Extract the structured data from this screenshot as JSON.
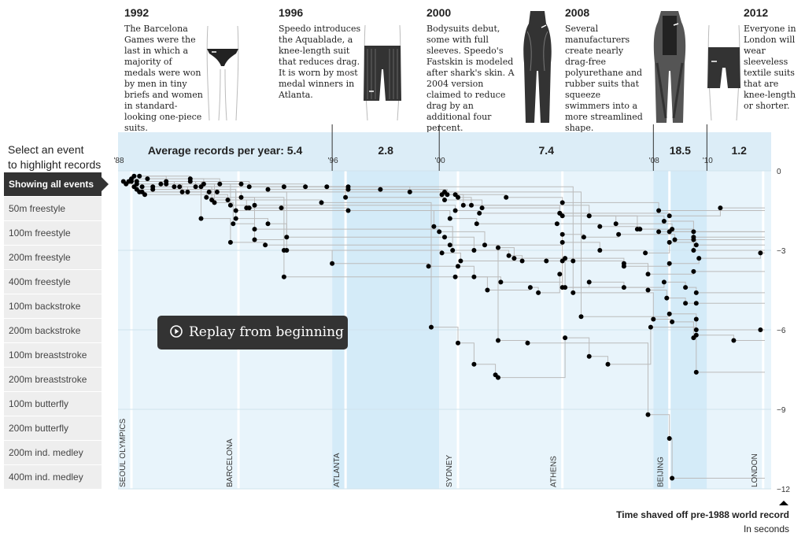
{
  "eras": [
    {
      "year": "1992",
      "text": "The Barcelona Games were the last in which a majority of medals were won by men in tiny briefs and women in standard-looking one-piece suits.",
      "suit_icon": "briefs-icon"
    },
    {
      "year": "1996",
      "text": "Speedo introduces the Aquablade, a knee-length suit that reduces drag. It is worn by most medal winners in Atlanta.",
      "suit_icon": "knee-suit-icon"
    },
    {
      "year": "2000",
      "text": "Bodysuits debut, some with full sleeves. Speedo's Fastskin is modeled after shark's skin. A 2004 version claimed to reduce drag by an additional four percent.",
      "suit_icon": "bodysuit-icon"
    },
    {
      "year": "2008",
      "text": "Several manufacturers create nearly drag-free polyurethane and rubber suits that squeeze swimmers into a more streamlined shape.",
      "suit_icon": "polyurethane-suit-icon"
    },
    {
      "year": "2012",
      "text": "Everyone in London will wear sleeveless textile suits that are knee-length or shorter.",
      "suit_icon": "sleeveless-suit-icon"
    }
  ],
  "sidebar": {
    "label_line1": "Select an event",
    "label_line2": "to highlight records",
    "items": [
      "Showing all events",
      "50m freestyle",
      "100m freestyle",
      "200m freestyle",
      "400m freestyle",
      "100m backstroke",
      "200m backstroke",
      "100m breaststroke",
      "200m breaststroke",
      "100m butterfly",
      "200m butterfly",
      "200m ind. medley",
      "400m ind. medley"
    ],
    "active_index": 0
  },
  "replay": {
    "label": "Replay from beginning",
    "icon": "play-circle-icon"
  },
  "footer": {
    "title": "Time shaved off pre-1988 world record",
    "unit": "In seconds",
    "icon": "triangle-up-icon"
  },
  "chart_data": {
    "type": "scatter",
    "title": "",
    "xlabel": "",
    "ylabel": "Time shaved off pre-1988 world record",
    "ylim": [
      -12,
      0
    ],
    "xlim": [
      1988,
      2012.4
    ],
    "y_ticks": [
      0,
      -3,
      -6,
      -9,
      -12
    ],
    "y_tick_labels": [
      "0",
      "−3",
      "−6",
      "−9",
      "−12"
    ],
    "x_ticks": [
      {
        "x": 1988,
        "label": "'88"
      },
      {
        "x": 1996,
        "label": "'96"
      },
      {
        "x": 2000,
        "label": "'00"
      },
      {
        "x": 2008,
        "label": "'08"
      },
      {
        "x": 2010,
        "label": "'10"
      }
    ],
    "grid": true,
    "legend": "none",
    "average_label_prefix": "Average records per year: ",
    "periods": [
      {
        "start": 1988,
        "end": 1996,
        "average": "5.4",
        "shade": "light"
      },
      {
        "start": 1996,
        "end": 2000,
        "average": "2.8",
        "shade": "dark"
      },
      {
        "start": 2000,
        "end": 2008,
        "average": "7.4",
        "shade": "light"
      },
      {
        "start": 2008,
        "end": 2010,
        "average": "18.5",
        "shade": "dark"
      },
      {
        "start": 2010,
        "end": 2012.4,
        "average": "1.2",
        "shade": "light"
      }
    ],
    "olympics": [
      {
        "x": 1988.5,
        "label": "SEOUL OLYMPICS"
      },
      {
        "x": 1992.5,
        "label": "BARCELONA"
      },
      {
        "x": 1996.5,
        "label": "ATLANTA"
      },
      {
        "x": 2000.7,
        "label": "SYDNEY"
      },
      {
        "x": 2004.6,
        "label": "ATHENS"
      },
      {
        "x": 2008.6,
        "label": "BEIJING"
      },
      {
        "x": 2012.1,
        "label": "LONDON"
      }
    ],
    "colors": {
      "light": "#e8f4fb",
      "dark": "#d4ebf8",
      "header": "#dcedf7",
      "dot": "#000000",
      "line": "#bbbbbb",
      "games": "#ffffff"
    },
    "series": [
      {
        "points": [
          [
            1988.2,
            -0.4
          ],
          [
            1988.6,
            -0.2
          ],
          [
            1990.7,
            -0.3
          ],
          [
            1991.8,
            -0.5
          ],
          [
            1994.2,
            -0.6
          ],
          [
            1996.6,
            -0.6
          ],
          [
            1998.9,
            -0.8
          ],
          [
            2000.1,
            -0.9
          ],
          [
            2000.6,
            -0.9
          ],
          [
            2002.5,
            -1.0
          ],
          [
            2004.6,
            -1.2
          ],
          [
            2008.2,
            -1.5
          ]
        ]
      },
      {
        "points": [
          [
            1988.3,
            -0.5
          ],
          [
            1989.3,
            -0.6
          ],
          [
            1990.6,
            -0.8
          ],
          [
            1992.6,
            -1.0
          ],
          [
            1993.1,
            -1.3
          ],
          [
            2000.6,
            -1.5
          ],
          [
            2001.5,
            -1.6
          ],
          [
            2004.6,
            -1.7
          ],
          [
            2008.4,
            -1.9
          ],
          [
            2009.5,
            -2.3
          ]
        ]
      },
      {
        "points": [
          [
            1988.8,
            -0.2
          ],
          [
            1989.8,
            -0.4
          ],
          [
            1991.1,
            -0.6
          ],
          [
            1995.8,
            -0.6
          ],
          [
            1996.5,
            -1.0
          ],
          [
            2000.2,
            -1.1
          ],
          [
            2001.6,
            -1.4
          ],
          [
            2004.5,
            -1.6
          ],
          [
            2008.6,
            -1.7
          ],
          [
            2010.5,
            -1.4
          ]
        ]
      },
      {
        "points": [
          [
            1988.5,
            -0.3
          ],
          [
            1989.8,
            -0.5
          ],
          [
            1992.6,
            -0.5
          ],
          [
            1995.0,
            -0.6
          ],
          [
            1996.6,
            -0.7
          ],
          [
            1997.8,
            -0.7
          ],
          [
            2000.2,
            -0.8
          ],
          [
            2000.7,
            -1.0
          ],
          [
            2001.2,
            -1.3
          ],
          [
            2005.6,
            -1.7
          ],
          [
            2006.6,
            -2.0
          ],
          [
            2008.7,
            -2.2
          ],
          [
            2009.5,
            -2.5
          ]
        ]
      },
      {
        "points": [
          [
            1988.9,
            -0.6
          ],
          [
            1990.3,
            -0.6
          ],
          [
            1991.5,
            -1.1
          ],
          [
            1992.8,
            -1.4
          ],
          [
            1994.1,
            -1.4
          ],
          [
            1996.6,
            -1.5
          ],
          [
            2000.4,
            -1.8
          ],
          [
            2001.4,
            -2.0
          ],
          [
            2004.4,
            -2.0
          ],
          [
            2006.0,
            -2.1
          ],
          [
            2007.5,
            -2.2
          ],
          [
            2008.2,
            -2.3
          ],
          [
            2009.5,
            -2.6
          ]
        ]
      },
      {
        "points": [
          [
            1988.7,
            -0.4
          ],
          [
            1990.7,
            -0.4
          ],
          [
            1992.9,
            -0.6
          ],
          [
            1993.6,
            -0.7
          ],
          [
            2000.3,
            -0.9
          ],
          [
            2000.9,
            -1.3
          ],
          [
            2004.5,
            -1.6
          ],
          [
            2005.6,
            -1.7
          ],
          [
            2007.4,
            -2.2
          ],
          [
            2008.6,
            -2.3
          ]
        ]
      },
      {
        "points": [
          [
            1989.1,
            -0.3
          ],
          [
            1991.2,
            -0.5
          ],
          [
            1992.2,
            -1.3
          ],
          [
            1992.9,
            -1.4
          ],
          [
            1993.1,
            -2.2
          ],
          [
            2000.0,
            -2.3
          ],
          [
            2001.7,
            -2.8
          ],
          [
            2004.6,
            -2.4
          ],
          [
            2005.4,
            -2.5
          ],
          [
            2006.7,
            -2.4
          ],
          [
            2008.8,
            -2.6
          ],
          [
            2009.6,
            -2.8
          ]
        ]
      },
      {
        "points": [
          [
            1988.5,
            -0.4
          ],
          [
            1990.1,
            -0.6
          ],
          [
            1991.1,
            -1.8
          ],
          [
            1992.2,
            -2.7
          ],
          [
            1993.5,
            -2.8
          ],
          [
            2000.4,
            -2.8
          ],
          [
            2002.2,
            -2.9
          ],
          [
            2002.8,
            -3.3
          ],
          [
            2004.6,
            -2.7
          ],
          [
            2006.0,
            -3.0
          ],
          [
            2007.7,
            -3.1
          ],
          [
            2008.6,
            -2.7
          ],
          [
            2009.5,
            -3.0
          ]
        ]
      },
      {
        "points": [
          [
            1988.6,
            -0.6
          ],
          [
            1989.6,
            -0.5
          ],
          [
            1991.6,
            -1.2
          ],
          [
            1992.3,
            -2.0
          ],
          [
            1993.1,
            -2.6
          ],
          [
            1994.2,
            -3.0
          ],
          [
            2000.1,
            -3.1
          ],
          [
            2000.8,
            -3.4
          ],
          [
            2004.0,
            -3.4
          ],
          [
            2005.0,
            -3.4
          ],
          [
            2006.9,
            -3.6
          ],
          [
            2008.6,
            -3.5
          ],
          [
            2009.7,
            -3.3
          ],
          [
            2012.0,
            -3.1
          ]
        ]
      },
      {
        "points": [
          [
            1988.9,
            -0.8
          ],
          [
            1991.4,
            -0.8
          ],
          [
            1992.4,
            -1.8
          ],
          [
            1993.6,
            -2.0
          ],
          [
            1994.3,
            -2.5
          ],
          [
            2000.2,
            -2.5
          ],
          [
            2001.3,
            -3.0
          ],
          [
            2002.6,
            -3.2
          ],
          [
            2003.1,
            -3.4
          ],
          [
            2004.7,
            -3.3
          ],
          [
            2006.9,
            -3.5
          ],
          [
            2007.8,
            -3.9
          ],
          [
            2009.5,
            -3.8
          ]
        ]
      },
      {
        "points": [
          [
            1988.7,
            -0.7
          ],
          [
            1991.7,
            -0.8
          ],
          [
            1994.3,
            -3.0
          ],
          [
            1996.0,
            -3.5
          ],
          [
            1999.6,
            -3.6
          ],
          [
            2000.7,
            -3.6
          ],
          [
            2001.3,
            -4.0
          ],
          [
            2002.3,
            -4.2
          ],
          [
            2004.6,
            -3.4
          ],
          [
            2004.7,
            -4.4
          ],
          [
            2005.6,
            -4.2
          ],
          [
            2006.9,
            -4.4
          ],
          [
            2008.4,
            -4.2
          ],
          [
            2009.2,
            -4.4
          ],
          [
            2009.6,
            -4.6
          ]
        ]
      },
      {
        "points": [
          [
            1988.8,
            -0.8
          ],
          [
            1991.3,
            -1.0
          ],
          [
            1994.2,
            -4.0
          ],
          [
            2000.6,
            -4.0
          ],
          [
            2001.8,
            -4.5
          ],
          [
            2003.4,
            -4.4
          ],
          [
            2003.7,
            -4.6
          ],
          [
            2004.5,
            -3.9
          ],
          [
            2004.6,
            -4.4
          ],
          [
            2007.8,
            -4.5
          ],
          [
            2008.5,
            -4.8
          ],
          [
            2009.2,
            -5.0
          ],
          [
            2009.6,
            -5.0
          ]
        ]
      },
      {
        "points": [
          [
            1989.0,
            -0.9
          ],
          [
            1992.1,
            -1.1
          ],
          [
            1995.6,
            -1.2
          ],
          [
            1999.7,
            -5.9
          ],
          [
            2000.7,
            -6.5
          ],
          [
            2001.3,
            -7.3
          ],
          [
            2002.1,
            -7.7
          ],
          [
            2002.2,
            -7.8
          ],
          [
            2004.7,
            -6.3
          ],
          [
            2005.6,
            -7.0
          ],
          [
            2006.3,
            -7.3
          ],
          [
            2007.9,
            -5.9
          ],
          [
            2009.6,
            -6.0
          ],
          [
            2012.0,
            -6.0
          ]
        ]
      },
      {
        "points": [
          [
            1989.3,
            -0.7
          ],
          [
            1992.4,
            -1.5
          ],
          [
            1999.8,
            -2.1
          ],
          [
            2000.5,
            -3.0
          ],
          [
            2002.2,
            -6.4
          ],
          [
            2003.3,
            -6.5
          ],
          [
            2007.8,
            -9.2
          ],
          [
            2008.6,
            -10.1
          ],
          [
            2008.7,
            -11.6
          ]
        ]
      },
      {
        "points": [
          [
            1988.7,
            -0.5
          ],
          [
            1990.4,
            -0.8
          ],
          [
            2005.3,
            -5.5
          ],
          [
            2008.6,
            -5.4
          ],
          [
            2009.6,
            -5.6
          ],
          [
            2009.6,
            -6.2
          ],
          [
            2011.0,
            -6.4
          ]
        ]
      },
      {
        "points": [
          [
            1988.4,
            -0.4
          ],
          [
            1990.9,
            -0.6
          ],
          [
            2005.0,
            -4.6
          ],
          [
            2008.0,
            -5.6
          ],
          [
            2008.7,
            -5.7
          ],
          [
            2009.5,
            -6.3
          ],
          [
            2009.6,
            -7.6
          ]
        ]
      }
    ]
  }
}
